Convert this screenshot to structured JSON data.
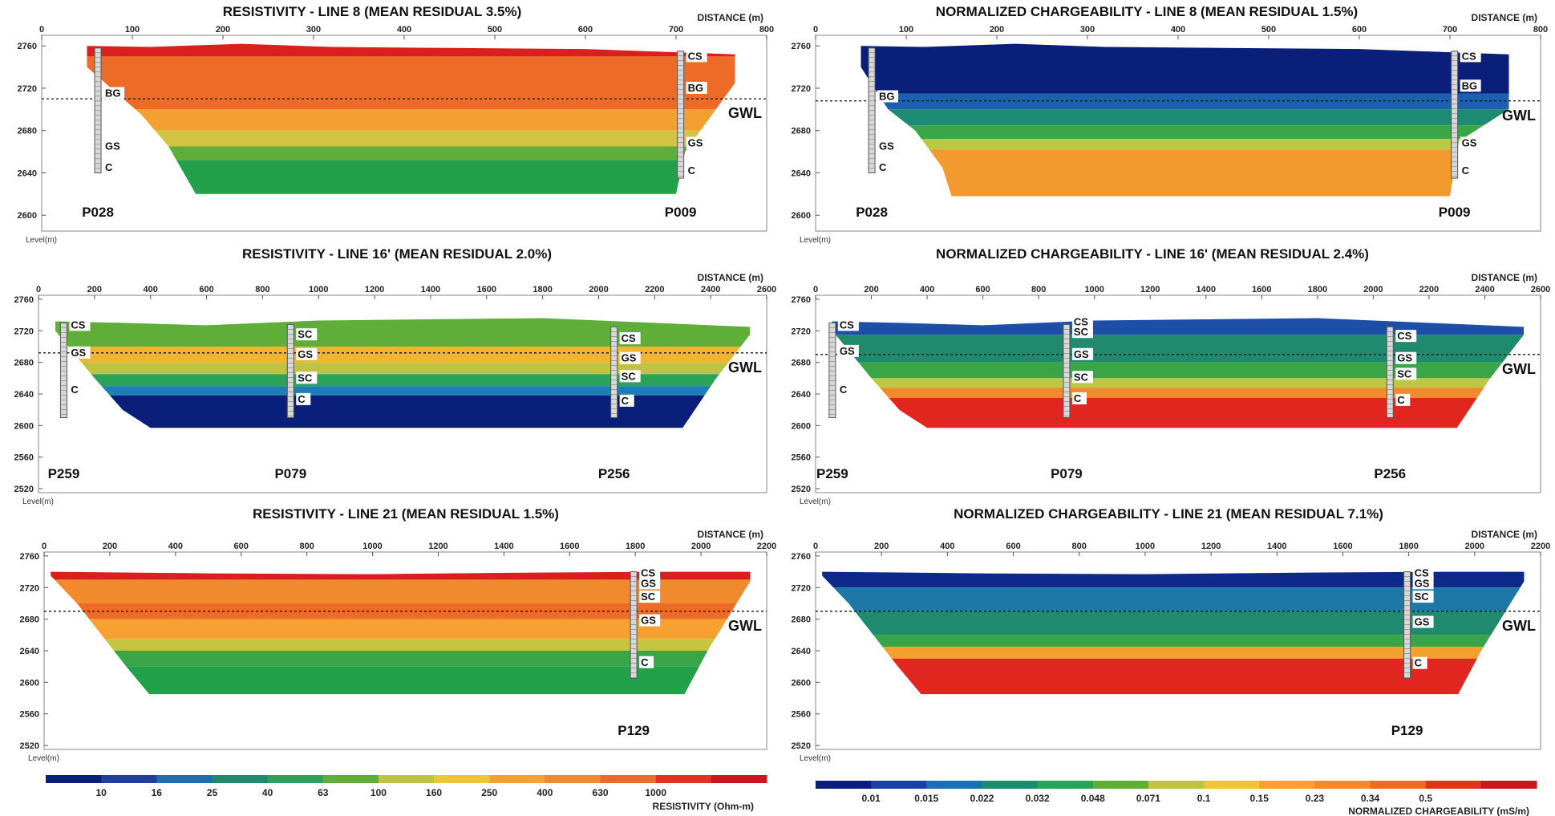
{
  "chart_data": [
    {
      "type": "heatmap",
      "title": "RESISTIVITY - LINE 8 (MEAN RESIDUAL 3.5%)",
      "xlabel": "DISTANCE (m)",
      "ylabel": "Level(m)",
      "x_ticks": [
        0,
        100,
        200,
        300,
        400,
        500,
        600,
        700,
        800
      ],
      "y_ticks": [
        2760,
        2720,
        2680,
        2640,
        2600
      ],
      "xlim": [
        0,
        800
      ],
      "ylim": [
        2585,
        2770
      ],
      "gwl_level": 2710,
      "gwl_label": "GWL",
      "surface": [
        [
          50,
          2760
        ],
        [
          120,
          2759
        ],
        [
          220,
          2762
        ],
        [
          320,
          2759
        ],
        [
          450,
          2758
        ],
        [
          600,
          2757
        ],
        [
          700,
          2754
        ],
        [
          765,
          2752
        ]
      ],
      "bottom": [
        [
          50,
          2740
        ],
        [
          110,
          2695
        ],
        [
          140,
          2665
        ],
        [
          170,
          2620
        ],
        [
          700,
          2620
        ],
        [
          710,
          2660
        ],
        [
          765,
          2725
        ]
      ],
      "layers": [
        {
          "level": 2750,
          "color": "#d9201e"
        },
        {
          "level": 2700,
          "color": "#ee6b27"
        },
        {
          "level": 2680,
          "color": "#f4a030"
        },
        {
          "level": 2665,
          "color": "#d3c342"
        },
        {
          "level": 2652,
          "color": "#5fae3a"
        },
        {
          "level": 2585,
          "color": "#22a04a"
        }
      ],
      "boreholes": [
        {
          "x": 62,
          "id": "P028",
          "top": 2758,
          "base": 2640,
          "labels": [
            {
              "text": "BG",
              "level": 2715
            },
            {
              "text": "GS",
              "level": 2665
            },
            {
              "text": "C",
              "level": 2645
            }
          ]
        },
        {
          "x": 705,
          "id": "P009",
          "top": 2755,
          "base": 2635,
          "labels": [
            {
              "text": "CS",
              "level": 2750
            },
            {
              "text": "BG",
              "level": 2720
            },
            {
              "text": "GS",
              "level": 2668
            },
            {
              "text": "C",
              "level": 2642
            }
          ]
        }
      ]
    },
    {
      "type": "heatmap",
      "title": "NORMALIZED CHARGEABILITY - LINE 8 (MEAN RESIDUAL 1.5%)",
      "xlabel": "DISTANCE (m)",
      "ylabel": "Level(m)",
      "x_ticks": [
        0,
        100,
        200,
        300,
        400,
        500,
        600,
        700,
        800
      ],
      "y_ticks": [
        2760,
        2720,
        2680,
        2640,
        2600
      ],
      "xlim": [
        0,
        800
      ],
      "ylim": [
        2585,
        2770
      ],
      "gwl_level": 2708,
      "gwl_label": "GWL",
      "surface": [
        [
          50,
          2760
        ],
        [
          120,
          2759
        ],
        [
          220,
          2762
        ],
        [
          320,
          2759
        ],
        [
          450,
          2758
        ],
        [
          600,
          2757
        ],
        [
          700,
          2754
        ],
        [
          765,
          2752
        ]
      ],
      "bottom": [
        [
          50,
          2740
        ],
        [
          80,
          2700
        ],
        [
          110,
          2680
        ],
        [
          140,
          2645
        ],
        [
          150,
          2618
        ],
        [
          700,
          2618
        ],
        [
          710,
          2670
        ],
        [
          765,
          2700
        ]
      ],
      "layers": [
        {
          "level": 2715,
          "color": "#0a1f7a"
        },
        {
          "level": 2700,
          "color": "#1d5fb0"
        },
        {
          "level": 2685,
          "color": "#1d8a72"
        },
        {
          "level": 2672,
          "color": "#3aa548"
        },
        {
          "level": 2662,
          "color": "#b9c845"
        },
        {
          "level": 2585,
          "color": "#f39a2e"
        }
      ],
      "boreholes": [
        {
          "x": 62,
          "id": "P028",
          "top": 2758,
          "base": 2640,
          "labels": [
            {
              "text": "BG",
              "level": 2712
            },
            {
              "text": "GS",
              "level": 2665
            },
            {
              "text": "C",
              "level": 2645
            }
          ]
        },
        {
          "x": 705,
          "id": "P009",
          "top": 2755,
          "base": 2635,
          "labels": [
            {
              "text": "CS",
              "level": 2750
            },
            {
              "text": "BG",
              "level": 2722
            },
            {
              "text": "GS",
              "level": 2668
            },
            {
              "text": "C",
              "level": 2642
            }
          ]
        }
      ]
    },
    {
      "type": "heatmap",
      "title": "RESISTIVITY - LINE 16' (MEAN RESIDUAL 2.0%)",
      "xlabel": "DISTANCE (m)",
      "ylabel": "Level(m)",
      "x_ticks": [
        0,
        200,
        400,
        600,
        800,
        1000,
        1200,
        1400,
        1600,
        1800,
        2000,
        2200,
        2400,
        2600
      ],
      "y_ticks": [
        2760,
        2720,
        2680,
        2640,
        2600,
        2560,
        2520
      ],
      "xlim": [
        0,
        2600
      ],
      "ylim": [
        2515,
        2765
      ],
      "gwl_level": 2692,
      "gwl_label": "GWL",
      "surface": [
        [
          60,
          2732
        ],
        [
          300,
          2730
        ],
        [
          600,
          2727
        ],
        [
          1000,
          2733
        ],
        [
          1800,
          2736
        ],
        [
          2200,
          2730
        ],
        [
          2540,
          2725
        ]
      ],
      "bottom": [
        [
          60,
          2720
        ],
        [
          200,
          2660
        ],
        [
          300,
          2620
        ],
        [
          400,
          2597
        ],
        [
          2300,
          2597
        ],
        [
          2420,
          2660
        ],
        [
          2540,
          2715
        ]
      ],
      "layers": [
        {
          "level": 2700,
          "color": "#5fae3a"
        },
        {
          "level": 2680,
          "color": "#f0b530"
        },
        {
          "level": 2665,
          "color": "#bfc242"
        },
        {
          "level": 2650,
          "color": "#2aa25a"
        },
        {
          "level": 2638,
          "color": "#1e7fb0"
        },
        {
          "level": 2515,
          "color": "#0a1f7a"
        }
      ],
      "boreholes": [
        {
          "x": 90,
          "id": "P259",
          "top": 2730,
          "base": 2610,
          "labels": [
            {
              "text": "CS",
              "level": 2727
            },
            {
              "text": "GS",
              "level": 2692
            },
            {
              "text": "C",
              "level": 2645
            }
          ]
        },
        {
          "x": 900,
          "id": "P079",
          "top": 2728,
          "base": 2610,
          "labels": [
            {
              "text": "SC",
              "level": 2715
            },
            {
              "text": "GS",
              "level": 2690
            },
            {
              "text": "SC",
              "level": 2660
            },
            {
              "text": "C",
              "level": 2633
            }
          ]
        },
        {
          "x": 2055,
          "id": "P256",
          "top": 2725,
          "base": 2610,
          "labels": [
            {
              "text": "CS",
              "level": 2710
            },
            {
              "text": "GS",
              "level": 2685
            },
            {
              "text": "SC",
              "level": 2662
            },
            {
              "text": "C",
              "level": 2631
            }
          ]
        }
      ]
    },
    {
      "type": "heatmap",
      "title": "NORMALIZED CHARGEABILITY - LINE 16' (MEAN RESIDUAL 2.4%)",
      "xlabel": "DISTANCE (m)",
      "ylabel": "Level(m)",
      "x_ticks": [
        0,
        200,
        400,
        600,
        800,
        1000,
        1200,
        1400,
        1600,
        1800,
        2000,
        2200,
        2400,
        2600
      ],
      "y_ticks": [
        2760,
        2720,
        2680,
        2640,
        2600,
        2560,
        2520
      ],
      "xlim": [
        0,
        2600
      ],
      "ylim": [
        2515,
        2765
      ],
      "gwl_level": 2690,
      "gwl_label": "GWL",
      "surface": [
        [
          60,
          2732
        ],
        [
          300,
          2730
        ],
        [
          600,
          2727
        ],
        [
          1000,
          2733
        ],
        [
          1800,
          2736
        ],
        [
          2200,
          2730
        ],
        [
          2540,
          2725
        ]
      ],
      "bottom": [
        [
          60,
          2720
        ],
        [
          200,
          2660
        ],
        [
          300,
          2620
        ],
        [
          400,
          2597
        ],
        [
          2300,
          2597
        ],
        [
          2420,
          2660
        ],
        [
          2540,
          2715
        ]
      ],
      "layers": [
        {
          "level": 2715,
          "color": "#1d4fa8"
        },
        {
          "level": 2680,
          "color": "#1f8a6e"
        },
        {
          "level": 2660,
          "color": "#3aa548"
        },
        {
          "level": 2648,
          "color": "#bcc843"
        },
        {
          "level": 2635,
          "color": "#f08a2c"
        },
        {
          "level": 2515,
          "color": "#e0261f"
        }
      ],
      "boreholes": [
        {
          "x": 60,
          "id": "P259",
          "top": 2730,
          "base": 2610,
          "labels": [
            {
              "text": "CS",
              "level": 2727
            },
            {
              "text": "GS",
              "level": 2694
            },
            {
              "text": "C",
              "level": 2645
            }
          ]
        },
        {
          "x": 900,
          "id": "P079",
          "top": 2728,
          "base": 2610,
          "labels": [
            {
              "text": "CS",
              "level": 2731
            },
            {
              "text": "SC",
              "level": 2718
            },
            {
              "text": "GS",
              "level": 2690
            },
            {
              "text": "SC",
              "level": 2661
            },
            {
              "text": "C",
              "level": 2634
            }
          ]
        },
        {
          "x": 2060,
          "id": "P256",
          "top": 2725,
          "base": 2610,
          "labels": [
            {
              "text": "CS",
              "level": 2713
            },
            {
              "text": "GS",
              "level": 2685
            },
            {
              "text": "SC",
              "level": 2665
            },
            {
              "text": "C",
              "level": 2632
            }
          ]
        }
      ]
    },
    {
      "type": "heatmap",
      "title": "RESISTIVITY - LINE 21 (MEAN RESIDUAL 1.5%)",
      "xlabel": "DISTANCE (m)",
      "ylabel": "Level(m)",
      "x_ticks": [
        0,
        200,
        400,
        600,
        800,
        1000,
        1200,
        1400,
        1600,
        1800,
        2000,
        2200
      ],
      "y_ticks": [
        2760,
        2720,
        2680,
        2640,
        2600,
        2560,
        2520
      ],
      "xlim": [
        0,
        2200
      ],
      "ylim": [
        2515,
        2765
      ],
      "gwl_level": 2690,
      "gwl_label": "GWL",
      "surface": [
        [
          20,
          2740
        ],
        [
          500,
          2738
        ],
        [
          1000,
          2737
        ],
        [
          1500,
          2739
        ],
        [
          1900,
          2740
        ],
        [
          2150,
          2740
        ]
      ],
      "bottom": [
        [
          20,
          2735
        ],
        [
          100,
          2700
        ],
        [
          250,
          2620
        ],
        [
          320,
          2585
        ],
        [
          1950,
          2585
        ],
        [
          2020,
          2640
        ],
        [
          2150,
          2728
        ]
      ],
      "layers": [
        {
          "level": 2730,
          "color": "#d9201e"
        },
        {
          "level": 2700,
          "color": "#f08a2c"
        },
        {
          "level": 2680,
          "color": "#ee6b27"
        },
        {
          "level": 2655,
          "color": "#f6a032"
        },
        {
          "level": 2640,
          "color": "#c6c440"
        },
        {
          "level": 2620,
          "color": "#3aa548"
        },
        {
          "level": 2515,
          "color": "#22a04a"
        }
      ],
      "boreholes": [
        {
          "x": 1795,
          "id": "P129",
          "top": 2740,
          "base": 2605,
          "labels": [
            {
              "text": "CS",
              "level": 2738
            },
            {
              "text": "GS",
              "level": 2725
            },
            {
              "text": "SC",
              "level": 2708
            },
            {
              "text": "GS",
              "level": 2678
            },
            {
              "text": "C",
              "level": 2625
            }
          ]
        }
      ]
    },
    {
      "type": "heatmap",
      "title": "NORMALIZED CHARGEABILITY - LINE 21 (MEAN RESIDUAL 7.1%)",
      "xlabel": "DISTANCE (m)",
      "ylabel": "Level(m)",
      "x_ticks": [
        0,
        200,
        400,
        600,
        800,
        1000,
        1200,
        1400,
        1600,
        1800,
        2000,
        2200
      ],
      "y_ticks": [
        2760,
        2720,
        2680,
        2640,
        2600,
        2560,
        2520
      ],
      "xlim": [
        0,
        2200
      ],
      "ylim": [
        2515,
        2765
      ],
      "gwl_level": 2690,
      "gwl_label": "GWL",
      "surface": [
        [
          20,
          2740
        ],
        [
          500,
          2738
        ],
        [
          1000,
          2737
        ],
        [
          1500,
          2739
        ],
        [
          1900,
          2740
        ],
        [
          2150,
          2740
        ]
      ],
      "bottom": [
        [
          20,
          2735
        ],
        [
          100,
          2700
        ],
        [
          250,
          2620
        ],
        [
          320,
          2585
        ],
        [
          1950,
          2585
        ],
        [
          2020,
          2640
        ],
        [
          2150,
          2728
        ]
      ],
      "layers": [
        {
          "level": 2720,
          "color": "#0d2a8a"
        },
        {
          "level": 2690,
          "color": "#1d78a8"
        },
        {
          "level": 2660,
          "color": "#1f8a6e"
        },
        {
          "level": 2645,
          "color": "#3aa548"
        },
        {
          "level": 2630,
          "color": "#f2a02e"
        },
        {
          "level": 2515,
          "color": "#e0261f"
        }
      ],
      "boreholes": [
        {
          "x": 1795,
          "id": "P129",
          "top": 2740,
          "base": 2605,
          "labels": [
            {
              "text": "CS",
              "level": 2738
            },
            {
              "text": "GS",
              "level": 2725
            },
            {
              "text": "SC",
              "level": 2708
            },
            {
              "text": "GS",
              "level": 2676
            },
            {
              "text": "C",
              "level": 2624
            }
          ]
        }
      ]
    }
  ],
  "legends": {
    "resistivity": {
      "title": "RESISTIVITY (Ohm-m)",
      "colors": [
        "#0a1f7a",
        "#1d3fa0",
        "#1e6fb0",
        "#1f8a6e",
        "#2aa25a",
        "#5fae3a",
        "#bfc242",
        "#f0c535",
        "#f6a032",
        "#f08a2c",
        "#ee6b27",
        "#e0341f",
        "#c8181e"
      ],
      "labels": [
        "10",
        "16",
        "25",
        "40",
        "63",
        "100",
        "160",
        "250",
        "400",
        "630",
        "1000"
      ]
    },
    "chargeability": {
      "title": "NORMALIZED CHARGEABILITY (mS/m)",
      "colors": [
        "#0a1f7a",
        "#1d3fa0",
        "#1e6fb0",
        "#1f8a6e",
        "#2aa25a",
        "#5fae3a",
        "#bfc242",
        "#f0c535",
        "#f6a032",
        "#f08a2c",
        "#ee6b27",
        "#e0341f",
        "#c8181e"
      ],
      "labels": [
        "0.01",
        "0.015",
        "0.022",
        "0.032",
        "0.048",
        "0.071",
        "0.1",
        "0.15",
        "0.23",
        "0.34",
        "0.5"
      ]
    }
  }
}
